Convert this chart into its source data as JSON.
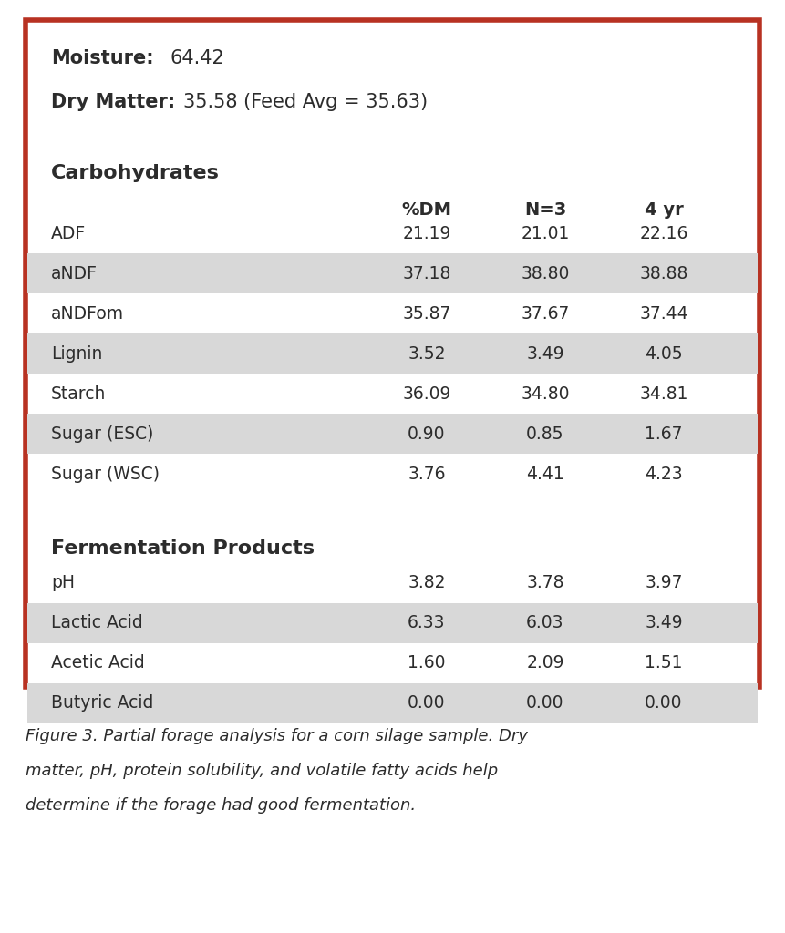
{
  "moisture_label": "Moisture:",
  "moisture_value": "64.42",
  "drymatter_label": "Dry Matter:",
  "drymatter_value": "35.58 (Feed Avg = 35.63)",
  "section1_header": "Carbohydrates",
  "section2_header": "Fermentation Products",
  "col_headers": [
    "%DM",
    "N=3",
    "4 yr"
  ],
  "carb_rows": [
    {
      "label": "ADF",
      "pct_dm": "21.19",
      "n3": "21.01",
      "yr4": "22.16",
      "shaded": false
    },
    {
      "label": "aNDF",
      "pct_dm": "37.18",
      "n3": "38.80",
      "yr4": "38.88",
      "shaded": true
    },
    {
      "label": "aNDFom",
      "pct_dm": "35.87",
      "n3": "37.67",
      "yr4": "37.44",
      "shaded": false
    },
    {
      "label": "Lignin",
      "pct_dm": "3.52",
      "n3": "3.49",
      "yr4": "4.05",
      "shaded": true
    },
    {
      "label": "Starch",
      "pct_dm": "36.09",
      "n3": "34.80",
      "yr4": "34.81",
      "shaded": false
    },
    {
      "label": "Sugar (ESC)",
      "pct_dm": "0.90",
      "n3": "0.85",
      "yr4": "1.67",
      "shaded": true
    },
    {
      "label": "Sugar (WSC)",
      "pct_dm": "3.76",
      "n3": "4.41",
      "yr4": "4.23",
      "shaded": false
    }
  ],
  "ferm_rows": [
    {
      "label": "pH",
      "pct_dm": "3.82",
      "n3": "3.78",
      "yr4": "3.97",
      "shaded": false
    },
    {
      "label": "Lactic Acid",
      "pct_dm": "6.33",
      "n3": "6.03",
      "yr4": "3.49",
      "shaded": true
    },
    {
      "label": "Acetic Acid",
      "pct_dm": "1.60",
      "n3": "2.09",
      "yr4": "1.51",
      "shaded": false
    },
    {
      "label": "Butyric Acid",
      "pct_dm": "0.00",
      "n3": "0.00",
      "yr4": "0.00",
      "shaded": true
    }
  ],
  "caption_line1": "Figure 3. Partial forage analysis for a corn silage sample. Dry",
  "caption_line2": "matter, pH, protein solubility, and volatile fatty acids help",
  "caption_line3": "determine if the forage had good fermentation.",
  "border_color": "#b83222",
  "shaded_color": "#d8d8d8",
  "white_color": "#ffffff",
  "bg_color": "#ffffff",
  "text_color": "#2c2c2c",
  "fig_width": 8.61,
  "fig_height": 10.24,
  "dpi": 100
}
